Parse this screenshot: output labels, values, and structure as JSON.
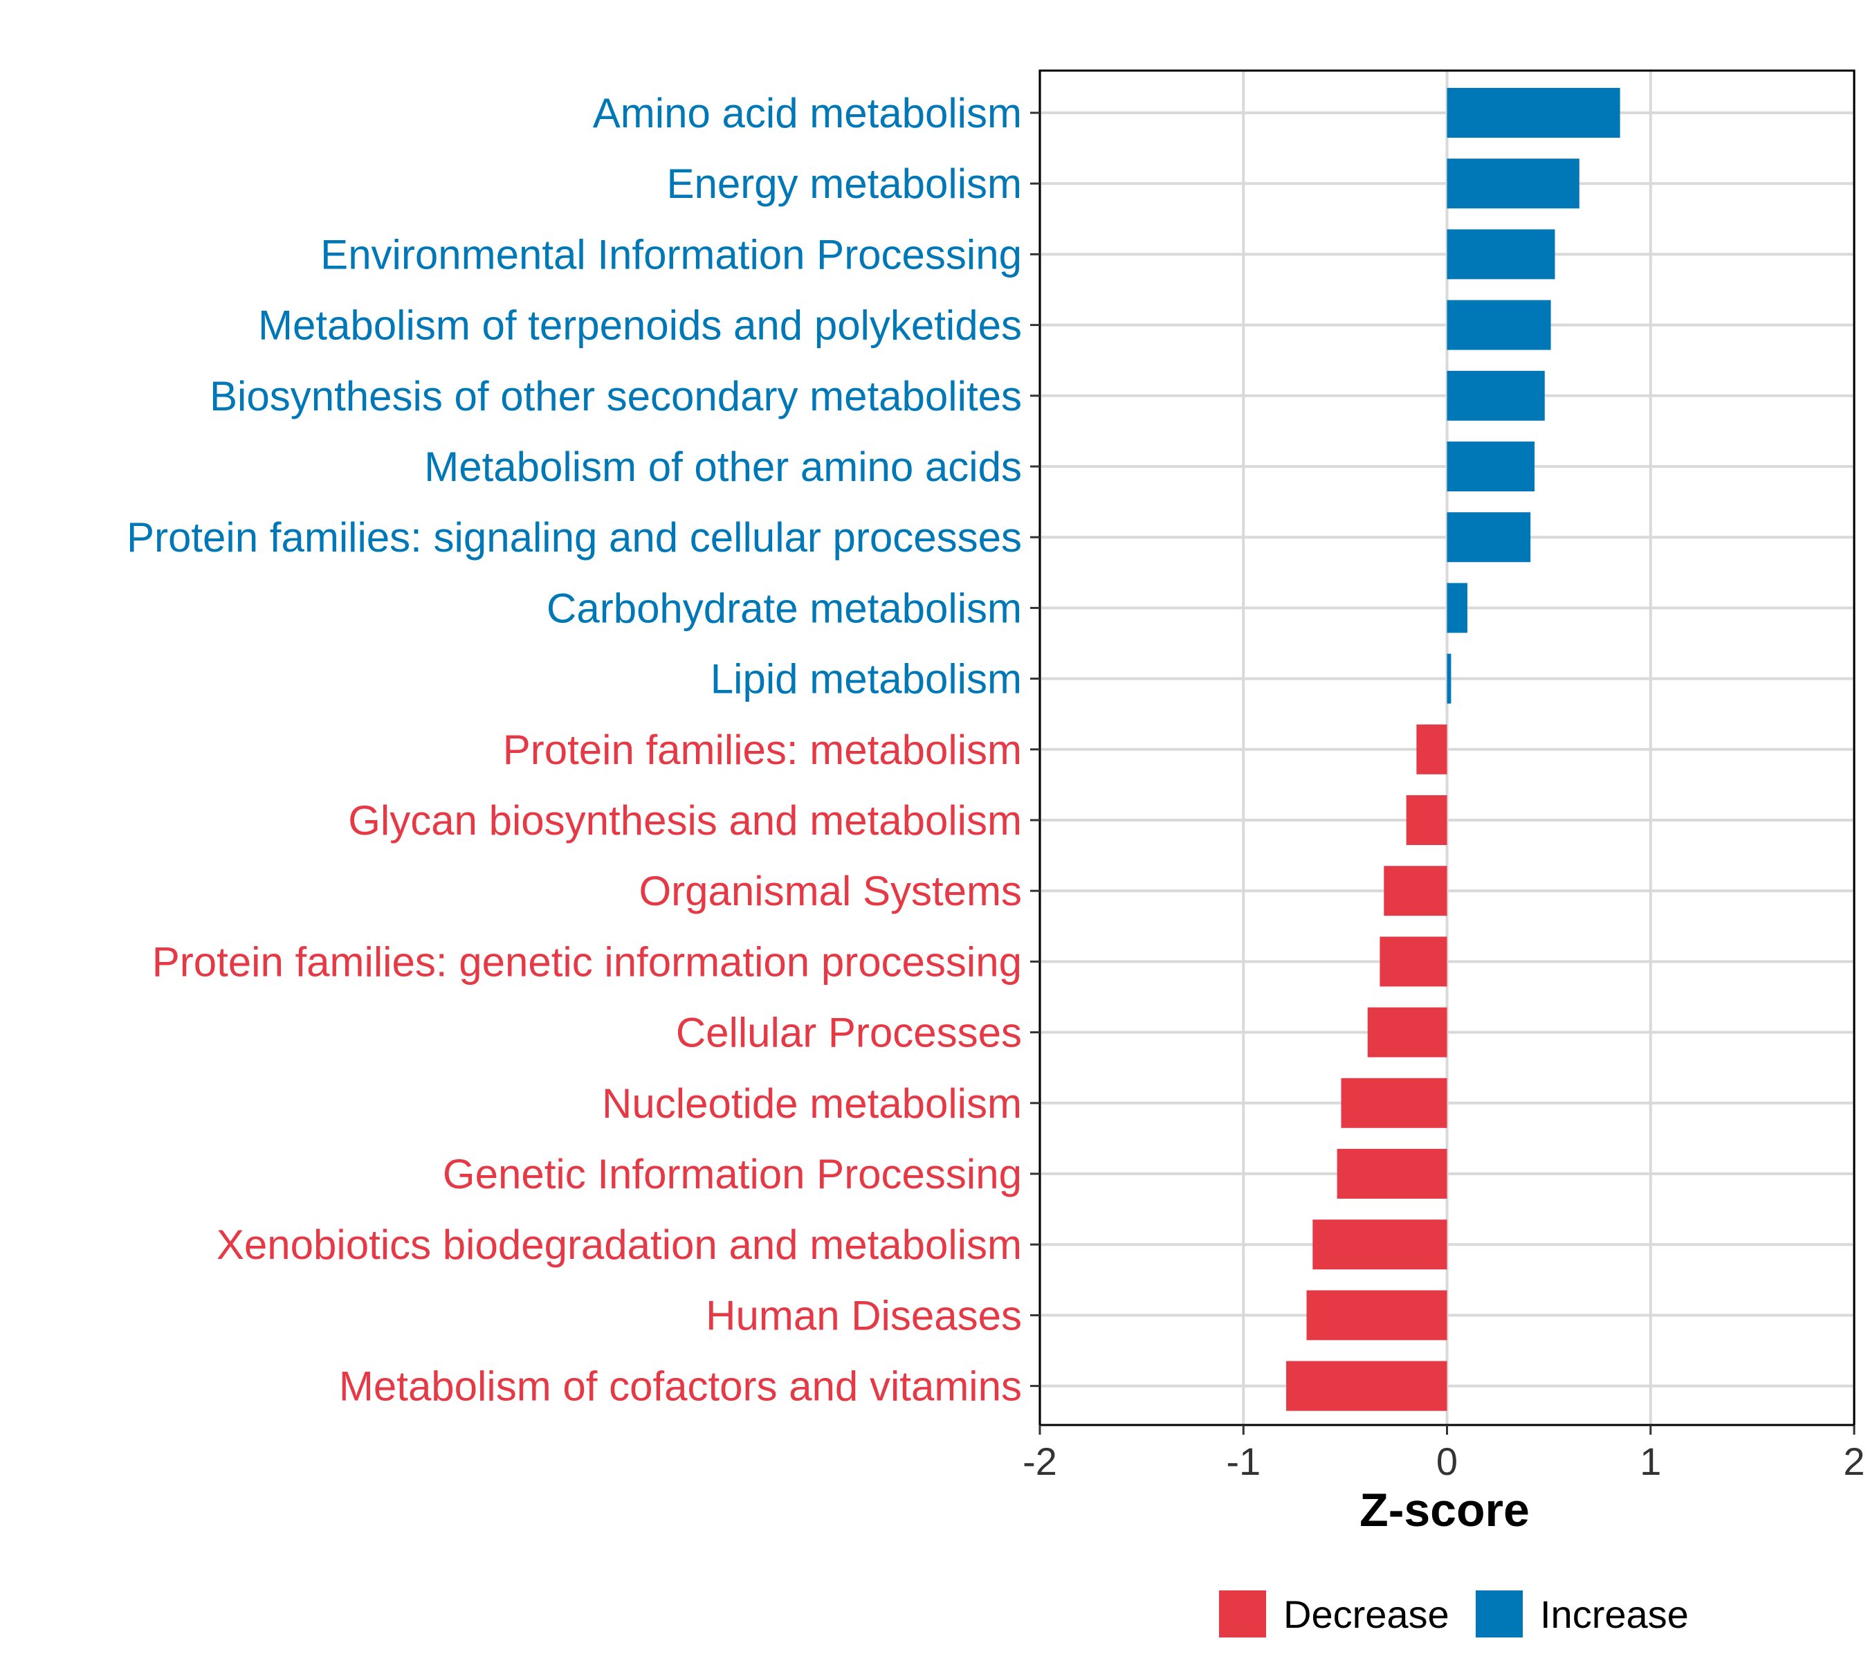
{
  "chart_data": {
    "type": "bar",
    "orientation": "horizontal",
    "xlabel": "Z-score",
    "ylabel": "",
    "xlim": [
      -2,
      2
    ],
    "xticks": [
      -2,
      -1,
      0,
      1,
      2
    ],
    "xtick_labels": [
      "-2",
      "-1",
      "0",
      "1",
      "2"
    ],
    "grid": true,
    "legend_position": "bottom",
    "colors": {
      "Decrease": "#E63946",
      "Increase": "#0077B6"
    },
    "legend": [
      {
        "name": "Decrease",
        "color": "#E63946"
      },
      {
        "name": "Increase",
        "color": "#0077B6"
      }
    ],
    "categories": [
      "Amino acid metabolism",
      "Energy metabolism",
      "Environmental Information Processing",
      "Metabolism of terpenoids and polyketides",
      "Biosynthesis of other secondary metabolites",
      "Metabolism of other amino acids",
      "Protein families: signaling and cellular processes",
      "Carbohydrate metabolism",
      "Lipid metabolism",
      "Protein families: metabolism",
      "Glycan biosynthesis and metabolism",
      "Organismal Systems",
      "Protein families: genetic information processing",
      "Cellular Processes",
      "Nucleotide metabolism",
      "Genetic Information Processing",
      "Xenobiotics biodegradation and metabolism",
      "Human Diseases",
      "Metabolism of cofactors and vitamins"
    ],
    "values": [
      0.85,
      0.65,
      0.53,
      0.51,
      0.48,
      0.43,
      0.41,
      0.1,
      0.02,
      -0.15,
      -0.2,
      -0.31,
      -0.33,
      -0.39,
      -0.52,
      -0.54,
      -0.66,
      -0.69,
      -0.79
    ],
    "groups": [
      "Increase",
      "Increase",
      "Increase",
      "Increase",
      "Increase",
      "Increase",
      "Increase",
      "Increase",
      "Increase",
      "Decrease",
      "Decrease",
      "Decrease",
      "Decrease",
      "Decrease",
      "Decrease",
      "Decrease",
      "Decrease",
      "Decrease",
      "Decrease"
    ]
  }
}
